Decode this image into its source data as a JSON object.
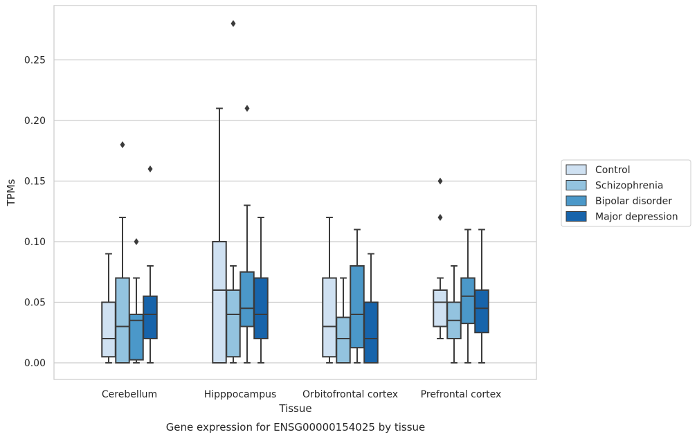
{
  "chart_data": {
    "type": "boxplot",
    "title": "",
    "xlabel": "Tissue",
    "ylabel": "TPMs",
    "caption": "Gene expression for ENSG00000154025 by tissue",
    "ylim": [
      -0.013,
      0.29
    ],
    "yticks": [
      "0.00",
      "0.05",
      "0.10",
      "0.15",
      "0.20",
      "0.25"
    ],
    "grid": "horizontal",
    "legend_position": "right-outside",
    "categories": [
      "Cerebellum",
      "Hipppocampus",
      "Orbitofrontal cortex",
      "Prefrontal cortex"
    ],
    "series": [
      {
        "name": "Control",
        "color": "#cfe1f2",
        "boxes": [
          {
            "whislo": 0.0,
            "q1": 0.005,
            "med": 0.02,
            "q3": 0.05,
            "whishi": 0.09,
            "fliers": []
          },
          {
            "whislo": 0.0,
            "q1": 0.0,
            "med": 0.06,
            "q3": 0.1,
            "whishi": 0.21,
            "fliers": []
          },
          {
            "whislo": 0.0,
            "q1": 0.005,
            "med": 0.03,
            "q3": 0.07,
            "whishi": 0.12,
            "fliers": []
          },
          {
            "whislo": 0.02,
            "q1": 0.03,
            "med": 0.05,
            "q3": 0.06,
            "whishi": 0.07,
            "fliers": [
              0.12,
              0.15
            ]
          }
        ]
      },
      {
        "name": "Schizophrenia",
        "color": "#93c3df",
        "boxes": [
          {
            "whislo": 0.0,
            "q1": 0.0,
            "med": 0.03,
            "q3": 0.07,
            "whishi": 0.12,
            "fliers": [
              0.18
            ]
          },
          {
            "whislo": 0.0,
            "q1": 0.005,
            "med": 0.04,
            "q3": 0.06,
            "whishi": 0.08,
            "fliers": [
              0.28
            ]
          },
          {
            "whislo": 0.0,
            "q1": 0.0,
            "med": 0.02,
            "q3": 0.0375,
            "whishi": 0.07,
            "fliers": []
          },
          {
            "whislo": 0.0,
            "q1": 0.02,
            "med": 0.035,
            "q3": 0.05,
            "whishi": 0.08,
            "fliers": []
          }
        ]
      },
      {
        "name": "Bipolar disorder",
        "color": "#4b98c9",
        "boxes": [
          {
            "whislo": 0.0,
            "q1": 0.0025,
            "med": 0.035,
            "q3": 0.04,
            "whishi": 0.07,
            "fliers": [
              0.1
            ]
          },
          {
            "whislo": 0.0,
            "q1": 0.03,
            "med": 0.045,
            "q3": 0.075,
            "whishi": 0.13,
            "fliers": [
              0.21
            ]
          },
          {
            "whislo": 0.0,
            "q1": 0.0125,
            "med": 0.04,
            "q3": 0.08,
            "whishi": 0.11,
            "fliers": []
          },
          {
            "whislo": 0.0,
            "q1": 0.0325,
            "med": 0.055,
            "q3": 0.07,
            "whishi": 0.11,
            "fliers": []
          }
        ]
      },
      {
        "name": "Major depression",
        "color": "#1764ab",
        "boxes": [
          {
            "whislo": 0.0,
            "q1": 0.02,
            "med": 0.04,
            "q3": 0.055,
            "whishi": 0.08,
            "fliers": [
              0.16
            ]
          },
          {
            "whislo": 0.0,
            "q1": 0.02,
            "med": 0.04,
            "q3": 0.07,
            "whishi": 0.12,
            "fliers": []
          },
          {
            "whislo": 0.0,
            "q1": 0.0,
            "med": 0.02,
            "q3": 0.05,
            "whishi": 0.09,
            "fliers": []
          },
          {
            "whislo": 0.0,
            "q1": 0.025,
            "med": 0.045,
            "q3": 0.06,
            "whishi": 0.11,
            "fliers": []
          }
        ]
      }
    ]
  }
}
